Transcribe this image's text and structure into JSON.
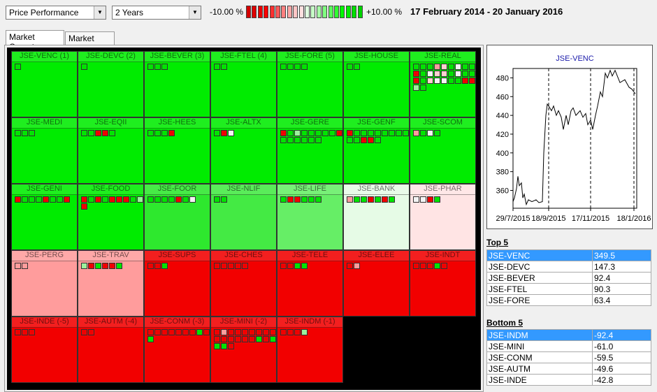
{
  "toolbar": {
    "measure": "Price Performance",
    "period": "2 Years",
    "scale_min": "-10.00 %",
    "scale_max": "+10.00 %",
    "scale_colors": [
      "#d40000",
      "#e00000",
      "#ec0000",
      "#f80000",
      "#ff3030",
      "#ff5a5a",
      "#ff8080",
      "#ffa6a6",
      "#ffc6c6",
      "#ffe0e0",
      "#e0ffe0",
      "#c6ffc6",
      "#a6ffa6",
      "#80ff80",
      "#5aff5a",
      "#30ff30",
      "#00f800",
      "#00ec00",
      "#00e000",
      "#00d400"
    ],
    "date_range": "17 February 2014 - 20 January 2016"
  },
  "tabs": [
    "Market Carpets",
    "Market Meter"
  ],
  "square_colors": {
    "g": "#00e400",
    "r": "#f00000",
    "p": "#ff9c9c",
    "w": "#f4f4f4",
    "lg": "#9cf09c",
    "lp": "#ffd0d0"
  },
  "cells": [
    {
      "label": "JSE-VENC (1)",
      "color": "#00ec00",
      "squares": [
        "g"
      ]
    },
    {
      "label": "JSE-DEVC (2)",
      "color": "#00ec00",
      "squares": [
        "g"
      ]
    },
    {
      "label": "JSE-BEVER (3)",
      "color": "#00ec00",
      "squares": [
        "g",
        "g",
        "g"
      ]
    },
    {
      "label": "JSE-FTEL (4)",
      "color": "#00ec00",
      "squares": [
        "g",
        "g"
      ]
    },
    {
      "label": "JSE-FORE (5)",
      "color": "#00ec00",
      "squares": [
        "g",
        "g",
        "g",
        "g"
      ]
    },
    {
      "label": "JSE-HOUSE",
      "color": "#00ec00",
      "squares": [
        "g",
        "g"
      ]
    },
    {
      "label": "JSE-REAL",
      "color": "#00ec00",
      "squares": [
        "g",
        "g",
        "g",
        "p",
        "lp",
        "g",
        "w",
        "g",
        "g",
        "r",
        "g",
        "w",
        "lp",
        "lp",
        "g",
        "w",
        "g",
        "g",
        "r",
        "g",
        "lp",
        "w",
        "w",
        "g",
        "g",
        "r",
        "r",
        "lg",
        "g"
      ]
    },
    {
      "label": "JSE-MEDI",
      "color": "#00ec00",
      "squares": [
        "g",
        "g",
        "g"
      ]
    },
    {
      "label": "JSE-EQII",
      "color": "#00ec00",
      "squares": [
        "g",
        "g",
        "r",
        "r",
        "g"
      ]
    },
    {
      "label": "JSE-HEES",
      "color": "#00ec00",
      "squares": [
        "g",
        "g",
        "g",
        "r"
      ]
    },
    {
      "label": "JSE-ALTX",
      "color": "#00ec00",
      "squares": [
        "g",
        "r",
        "w"
      ]
    },
    {
      "label": "JSE-GERE",
      "color": "#00ec00",
      "squares": [
        "r",
        "g",
        "lg",
        "g",
        "g",
        "g",
        "g",
        "g",
        "r",
        "g",
        "g",
        "g",
        "g",
        "g",
        "g"
      ]
    },
    {
      "label": "JSE-GENF",
      "color": "#00ec00",
      "squares": [
        "r",
        "g",
        "g",
        "g",
        "g",
        "g",
        "g",
        "g",
        "g",
        "g",
        "g",
        "r",
        "r",
        "g"
      ]
    },
    {
      "label": "JSE-SCOM",
      "color": "#00ec00",
      "squares": [
        "p",
        "g",
        "w",
        "g"
      ]
    },
    {
      "label": "JSE-GENI",
      "color": "#00ec00",
      "squares": [
        "r",
        "g",
        "g",
        "g",
        "r",
        "g",
        "g",
        "r"
      ]
    },
    {
      "label": "JSE-FOOD",
      "color": "#00ec00",
      "squares": [
        "r",
        "g",
        "r",
        "g",
        "r",
        "r",
        "r",
        "g",
        "lg",
        "r"
      ]
    },
    {
      "label": "JSE-FOOR",
      "color": "#2ee82e",
      "squares": [
        "g",
        "g",
        "g",
        "g",
        "r",
        "g",
        "w"
      ]
    },
    {
      "label": "JSE-NLIF",
      "color": "#44ea44",
      "squares": [
        "g",
        "g"
      ]
    },
    {
      "label": "JSE-LIFE",
      "color": "#66ee66",
      "squares": [
        "g",
        "r",
        "r",
        "g",
        "g",
        "g"
      ]
    },
    {
      "label": "JSE-BANK",
      "color": "#e6fbe6",
      "squares": [
        "p",
        "g",
        "g",
        "r",
        "g",
        "r",
        "g"
      ]
    },
    {
      "label": "JSE-PHAR",
      "color": "#ffe4e4",
      "squares": [
        "w",
        "w",
        "r",
        "g"
      ]
    },
    {
      "label": "JSE-PERG",
      "color": "#ff9c9c",
      "squares": [
        "p",
        "p"
      ]
    },
    {
      "label": "JSE-TRAV",
      "color": "#ff9c9c",
      "squares": [
        "lg",
        "r",
        "g",
        "r",
        "r",
        "g"
      ]
    },
    {
      "label": "JSE-SUPS",
      "color": "#f20000",
      "squares": [
        "r",
        "r",
        "g"
      ]
    },
    {
      "label": "JSE-CHES",
      "color": "#f20000",
      "squares": [
        "r",
        "r",
        "r",
        "r",
        "r"
      ]
    },
    {
      "label": "JSE-TELE",
      "color": "#f20000",
      "squares": [
        "r",
        "r",
        "g",
        "g"
      ]
    },
    {
      "label": "JSE-ELEE",
      "color": "#f20000",
      "squares": [
        "r",
        "p"
      ]
    },
    {
      "label": "JSE-INDT",
      "color": "#f20000",
      "squares": [
        "r",
        "r",
        "r",
        "g",
        "r"
      ]
    },
    {
      "label": "JSE-INDE (-5)",
      "color": "#f20000",
      "squares": [
        "r",
        "r",
        "r"
      ]
    },
    {
      "label": "JSE-AUTM (-4)",
      "color": "#f20000",
      "squares": [
        "r",
        "r"
      ]
    },
    {
      "label": "JSE-CONM (-3)",
      "color": "#f20000",
      "squares": [
        "r",
        "r",
        "r",
        "r",
        "r",
        "r",
        "r",
        "g",
        "r",
        "g"
      ]
    },
    {
      "label": "JSE-MINI (-2)",
      "color": "#f20000",
      "squares": [
        "r",
        "p",
        "r",
        "r",
        "r",
        "r",
        "r",
        "r",
        "r",
        "r",
        "r",
        "r",
        "r",
        "r",
        "r",
        "g",
        "r",
        "g",
        "g",
        "g",
        "r"
      ]
    },
    {
      "label": "JSE-INDM (-1)",
      "color": "#f20000",
      "squares": [
        "r",
        "r",
        "r",
        "lg"
      ]
    }
  ],
  "price_chart": {
    "type": "line",
    "title": "JSE-VENC",
    "color": "#000000",
    "x": [
      "2015-07-29",
      "2015-07-31",
      "2015-08-03",
      "2015-08-05",
      "2015-08-07",
      "2015-08-10",
      "2015-08-12",
      "2015-08-14",
      "2015-08-17",
      "2015-08-20",
      "2015-08-25",
      "2015-08-31",
      "2015-09-04",
      "2015-09-09",
      "2015-09-11",
      "2015-09-14",
      "2015-09-16",
      "2015-09-18",
      "2015-09-22",
      "2015-09-25",
      "2015-09-29",
      "2015-10-02",
      "2015-10-06",
      "2015-10-09",
      "2015-10-13",
      "2015-10-16",
      "2015-10-20",
      "2015-10-23",
      "2015-10-27",
      "2015-11-02",
      "2015-11-06",
      "2015-11-10",
      "2015-11-13",
      "2015-11-17",
      "2015-11-20",
      "2015-11-24",
      "2015-11-27",
      "2015-12-01",
      "2015-12-04",
      "2015-12-08",
      "2015-12-11",
      "2015-12-15",
      "2015-12-18",
      "2015-12-22",
      "2015-12-29",
      "2016-01-05",
      "2016-01-11",
      "2016-01-15",
      "2016-01-20"
    ],
    "values": [
      348,
      352,
      362,
      375,
      365,
      368,
      352,
      356,
      345,
      350,
      348,
      350,
      347,
      348,
      400,
      440,
      452,
      450,
      445,
      450,
      440,
      445,
      438,
      425,
      440,
      430,
      445,
      448,
      440,
      445,
      438,
      442,
      430,
      435,
      425,
      440,
      450,
      465,
      460,
      485,
      480,
      488,
      482,
      488,
      475,
      478,
      470,
      468,
      463
    ],
    "xlim": [
      "2015-07-29",
      "2016-01-22"
    ],
    "xticks": [
      {
        "value": "2015-07-29",
        "label": "29/7/2015"
      },
      {
        "value": "2015-09-18",
        "label": "18/9/2015"
      },
      {
        "value": "2015-11-17",
        "label": "17/11/2015"
      },
      {
        "value": "2016-01-18",
        "label": "18/1/2016"
      }
    ],
    "ylim": [
      341,
      490
    ],
    "yticks": [
      360,
      380,
      400,
      420,
      440,
      460,
      480
    ],
    "grid": true
  },
  "top": {
    "title": "Top 5",
    "rows": [
      [
        "JSE-VENC",
        "349.5"
      ],
      [
        "JSE-DEVC",
        "147.3"
      ],
      [
        "JSE-BEVER",
        "92.4"
      ],
      [
        "JSE-FTEL",
        "90.3"
      ],
      [
        "JSE-FORE",
        "63.4"
      ]
    ]
  },
  "bottom": {
    "title": "Bottom 5",
    "rows": [
      [
        "JSE-INDM",
        "-92.4"
      ],
      [
        "JSE-MINI",
        "-61.0"
      ],
      [
        "JSE-CONM",
        "-59.5"
      ],
      [
        "JSE-AUTM",
        "-49.6"
      ],
      [
        "JSE-INDE",
        "-42.8"
      ]
    ]
  }
}
